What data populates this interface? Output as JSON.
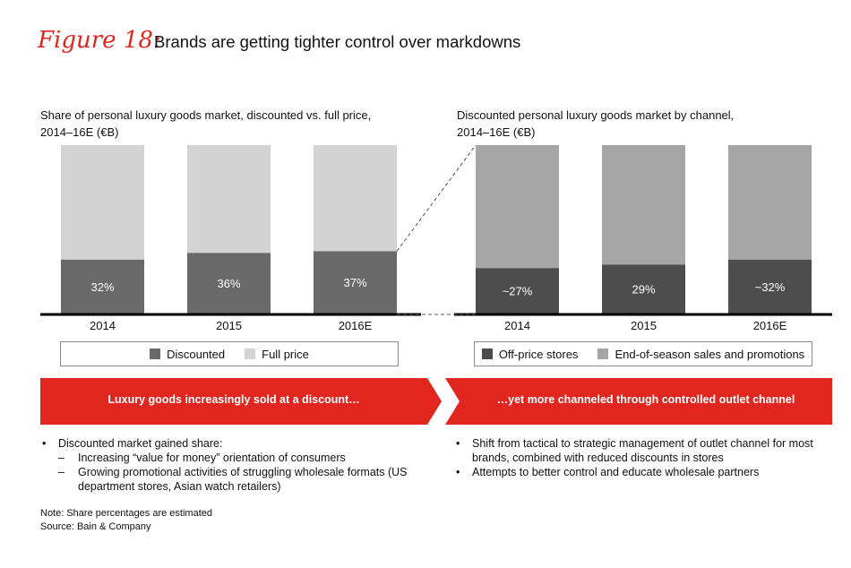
{
  "figure": {
    "label": "Figure 18:",
    "title": "Brands are getting tighter control over markdowns"
  },
  "colors": {
    "accent": "#e0261f",
    "discounted": "#696969",
    "full_price": "#d3d3d3",
    "off_price": "#4d4d4d",
    "end_of_season": "#a6a6a6",
    "axis": "#000000"
  },
  "chart_data": [
    {
      "type": "bar",
      "stacked": true,
      "title": "Share of personal luxury goods market, discounted vs. full price, 2014–16E (€B)",
      "title_lines": [
        "Share of personal luxury goods market, discounted vs. full price,",
        "2014–16E (€B)"
      ],
      "categories": [
        "2014",
        "2015",
        "2016E"
      ],
      "series": [
        {
          "name": "Discounted",
          "values": [
            32,
            36,
            37
          ],
          "labels": [
            "32%",
            "36%",
            "37%"
          ]
        },
        {
          "name": "Full price",
          "values": [
            68,
            64,
            63
          ]
        }
      ],
      "ylim": [
        0,
        100
      ],
      "legend": [
        "Discounted",
        "Full price"
      ]
    },
    {
      "type": "bar",
      "stacked": true,
      "title": "Discounted personal luxury goods market by channel, 2014–16E (€B)",
      "title_lines": [
        "Discounted personal luxury goods market by channel,",
        "2014–16E (€B)"
      ],
      "categories": [
        "2014",
        "2015",
        "2016E"
      ],
      "series": [
        {
          "name": "Off-price stores",
          "values": [
            27,
            29,
            32
          ],
          "labels": [
            "~27%",
            "29%",
            "~32%"
          ]
        },
        {
          "name": "End-of-season sales and promotions",
          "values": [
            73,
            71,
            68
          ]
        }
      ],
      "ylim": [
        0,
        100
      ],
      "legend": [
        "Off-price stores",
        "End-of-season sales and promotions"
      ]
    }
  ],
  "banners": {
    "left": "Luxury goods increasingly sold at a discount…",
    "right": "…yet more channeled through controlled outlet channel"
  },
  "left_bullets": {
    "main": "Discounted market gained share:",
    "sub": [
      "Increasing “value for money” orientation of consumers",
      "Growing promotional activities of struggling wholesale formats (US department stores, Asian watch retailers)"
    ]
  },
  "right_bullets": [
    "Shift from tactical to strategic management of outlet channel for most brands, combined with reduced discounts in stores",
    "Attempts to better control and educate wholesale partners"
  ],
  "notes": {
    "note": "Note: Share percentages are estimated",
    "source": "Source: Bain & Company"
  }
}
